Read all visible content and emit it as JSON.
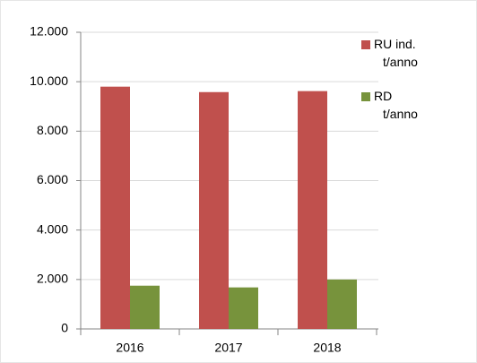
{
  "chart_data": {
    "type": "bar",
    "categories": [
      "2016",
      "2017",
      "2018"
    ],
    "series": [
      {
        "name": "RU ind. t/anno",
        "color": "#c0504d",
        "values": [
          9800,
          9580,
          9620
        ]
      },
      {
        "name": "RD t/anno",
        "color": "#77933c",
        "values": [
          1750,
          1680,
          2000
        ]
      }
    ],
    "ylim": [
      0,
      12000
    ],
    "yticks": [
      0,
      {
        "value": 2000,
        "label": "2.000"
      },
      {
        "value": 4000,
        "label": "4.000"
      },
      {
        "value": 6000,
        "label": "6.000"
      },
      {
        "value": 8000,
        "label": "8.000"
      },
      {
        "value": 10000,
        "label": "10.000"
      },
      {
        "value": 12000,
        "label": "12.000"
      }
    ],
    "grid": true,
    "legend": "right"
  }
}
